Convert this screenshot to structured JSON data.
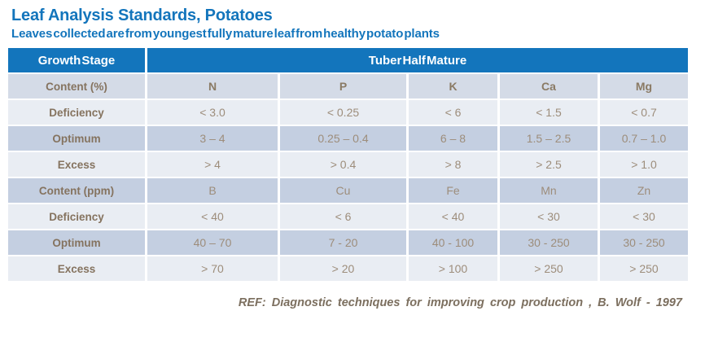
{
  "header": {
    "title": "Leaf Analysis Standards, Potatoes",
    "subtitle": "Leaves collected are from youngest fully mature leaf from healthy potato plants"
  },
  "colors": {
    "accent_blue": "#1375BC",
    "band_light": "#E9EDF3",
    "band_dark": "#C4CFE1",
    "band_subheader": "#D4DBE7",
    "text_brown": "#85735F",
    "text_value": "#9D8D7B"
  },
  "table": {
    "corner_header": "Growth Stage",
    "stage_header": "Tuber Half Mature",
    "rows": [
      {
        "label": "Content (%)",
        "cells": [
          "N",
          "P",
          "K",
          "Ca",
          "Mg"
        ]
      },
      {
        "label": "Deficiency",
        "cells": [
          "< 3.0",
          "< 0.25",
          "< 6",
          "< 1.5",
          "< 0.7"
        ]
      },
      {
        "label": "Optimum",
        "cells": [
          "3 – 4",
          "0.25 – 0.4",
          "6 – 8",
          "1.5 – 2.5",
          "0.7 – 1.0"
        ]
      },
      {
        "label": "Excess",
        "cells": [
          "> 4",
          "> 0.4",
          "> 8",
          "> 2.5",
          "> 1.0"
        ]
      },
      {
        "label": "Content (ppm)",
        "cells": [
          "B",
          "Cu",
          "Fe",
          "Mn",
          "Zn"
        ]
      },
      {
        "label": "Deficiency",
        "cells": [
          "< 40",
          "< 6",
          "< 40",
          "< 30",
          "< 30"
        ]
      },
      {
        "label": "Optimum",
        "cells": [
          "40 – 70",
          "7 - 20",
          "40 - 100",
          "30 - 250",
          "30 - 250"
        ]
      },
      {
        "label": "Excess",
        "cells": [
          "> 70",
          "> 20",
          "> 100",
          "> 250",
          "> 250"
        ]
      }
    ]
  },
  "footer": {
    "reference": "REF: Diagnostic techniques for improving crop production , B. Wolf - 1997"
  }
}
